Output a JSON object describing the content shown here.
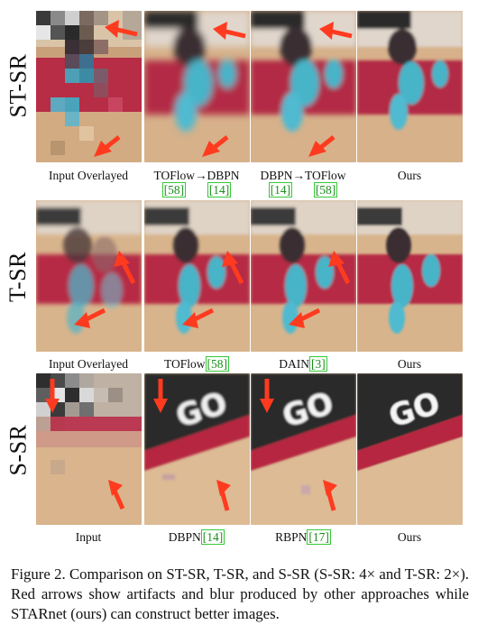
{
  "rows": [
    {
      "label": "ST-SR",
      "captions": [
        {
          "text": "Input Overlayed",
          "ref": ""
        },
        {
          "text": "TOFlow→DBPN",
          "refs": [
            "[58]",
            "[14]"
          ]
        },
        {
          "text": "DBPN→TOFlow",
          "refs": [
            "[14]",
            "[58]"
          ]
        },
        {
          "text": "Ours",
          "ref": ""
        }
      ]
    },
    {
      "label": "T-SR",
      "captions": [
        {
          "text": "Input Overlayed",
          "ref": ""
        },
        {
          "text": "TOFlow",
          "ref": "[58]"
        },
        {
          "text": "DAIN",
          "ref": "[3]"
        },
        {
          "text": "Ours",
          "ref": ""
        }
      ]
    },
    {
      "label": "S-SR",
      "captions": [
        {
          "text": "Input",
          "ref": ""
        },
        {
          "text": "DBPN",
          "ref": "[14]"
        },
        {
          "text": "RBPN",
          "ref": "[17]"
        },
        {
          "text": "Ours",
          "ref": ""
        }
      ]
    }
  ],
  "figure_caption": "Figure 2. Comparison on ST-SR, T-SR, and S-SR (S-SR: 4× and T-SR: 2×). Red arrows show artifacts and blur produced by other approaches while STARnet (ours) can construct better images.",
  "colors": {
    "arrow": "#ff3b1f",
    "court_red": "#b8263f",
    "wood": "#d8b48c",
    "teal": "#43b7c9",
    "ref_green": "#1a8f1a"
  }
}
